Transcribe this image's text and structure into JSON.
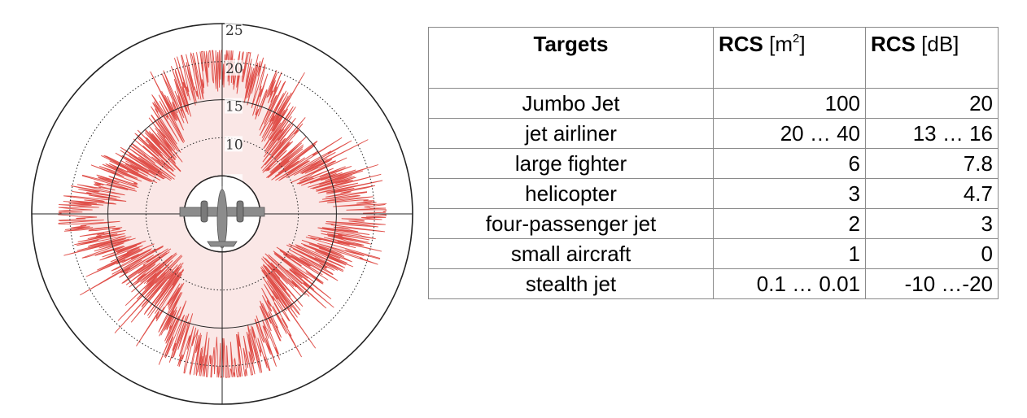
{
  "chart_data": [
    {
      "type": "polar",
      "radial_ticks": [
        "5",
        "10",
        "15",
        "20",
        "25"
      ],
      "rmax": 25,
      "colors": {
        "trace": "#e0504a",
        "grid": "#222222",
        "aircraft": "#8c8c8c"
      },
      "aircraft_icon": "twin-engine-aircraft-icon"
    },
    {
      "type": "table",
      "columns": [
        {
          "bold": "Targets",
          "unit": "",
          "sup": ""
        },
        {
          "bold": "RCS",
          "unit": "[m",
          "sup": "2",
          "unit_end": "]"
        },
        {
          "bold": "RCS",
          "unit": "[dB]",
          "sup": "",
          "unit_end": ""
        }
      ],
      "rows": [
        {
          "target": "Jumbo Jet",
          "m2": "100",
          "db": "20"
        },
        {
          "target": "jet airliner",
          "m2": "20 … 40",
          "db": "13 … 16"
        },
        {
          "target": "large fighter",
          "m2": "6",
          "db": "7.8"
        },
        {
          "target": "helicopter",
          "m2": "3",
          "db": "4.7"
        },
        {
          "target": "four-passenger jet",
          "m2": "2",
          "db": "3"
        },
        {
          "target": "small aircraft",
          "m2": "1",
          "db": "0"
        },
        {
          "target": "stealth jet",
          "m2": "0.1 … 0.01",
          "db": "-10 …-20"
        }
      ]
    }
  ]
}
